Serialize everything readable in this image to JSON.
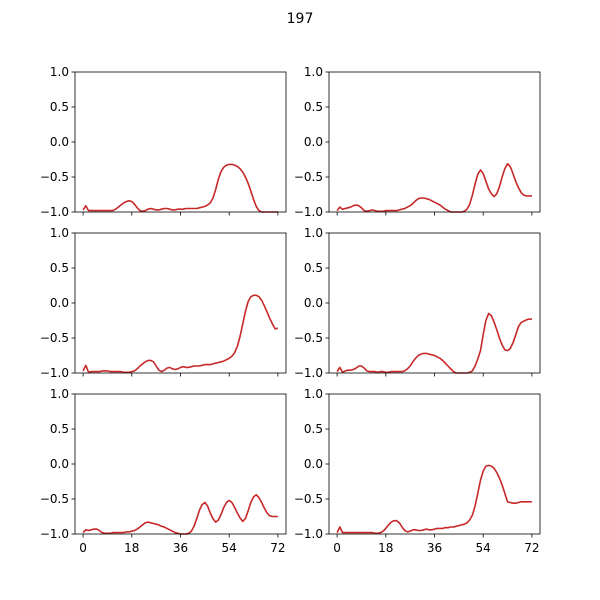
{
  "title": "197",
  "line_color": "#c62828",
  "chart_data": {
    "type": "line",
    "layout": "3x2 grid",
    "title": "197",
    "xlim": [
      -3,
      75
    ],
    "ylim": [
      -1.0,
      1.0
    ],
    "xticks": [
      0,
      18,
      36,
      54,
      72
    ],
    "xtick_labels": [
      "0",
      "18",
      "36",
      "54",
      "72"
    ],
    "yticks": [
      -1.0,
      -0.5,
      0.0,
      0.5,
      1.0
    ],
    "ytick_labels": [
      "−1.0",
      "−0.5",
      "0.0",
      "0.5",
      "1.0"
    ],
    "grid": false,
    "x": [
      0,
      1,
      2,
      3,
      4,
      5,
      6,
      7,
      8,
      9,
      10,
      11,
      12,
      13,
      14,
      15,
      16,
      17,
      18,
      19,
      20,
      21,
      22,
      23,
      24,
      25,
      26,
      27,
      28,
      29,
      30,
      31,
      32,
      33,
      34,
      35,
      36,
      37,
      38,
      39,
      40,
      41,
      42,
      43,
      44,
      45,
      46,
      47,
      48,
      49,
      50,
      51,
      52,
      53,
      54,
      55,
      56,
      57,
      58,
      59,
      60,
      61,
      62,
      63,
      64,
      65,
      66,
      67,
      68,
      69,
      70,
      71,
      72
    ],
    "panels": [
      {
        "position": "top-left",
        "values": [
          -0.97,
          -0.91,
          -0.98,
          -0.98,
          -0.98,
          -0.98,
          -0.98,
          -0.98,
          -0.98,
          -0.98,
          -0.98,
          -0.98,
          -0.96,
          -0.93,
          -0.9,
          -0.87,
          -0.85,
          -0.84,
          -0.85,
          -0.89,
          -0.94,
          -0.98,
          -0.99,
          -0.98,
          -0.96,
          -0.95,
          -0.96,
          -0.97,
          -0.97,
          -0.96,
          -0.95,
          -0.95,
          -0.96,
          -0.97,
          -0.97,
          -0.96,
          -0.96,
          -0.96,
          -0.95,
          -0.95,
          -0.95,
          -0.95,
          -0.95,
          -0.94,
          -0.93,
          -0.92,
          -0.9,
          -0.87,
          -0.8,
          -0.68,
          -0.53,
          -0.42,
          -0.36,
          -0.33,
          -0.32,
          -0.32,
          -0.33,
          -0.35,
          -0.38,
          -0.43,
          -0.5,
          -0.59,
          -0.7,
          -0.82,
          -0.92,
          -0.98,
          -1.0,
          -1.0,
          -1.0,
          -1.0,
          -1.0,
          -1.0,
          -1.0
        ]
      },
      {
        "position": "top-right",
        "values": [
          -0.98,
          -0.93,
          -0.96,
          -0.95,
          -0.94,
          -0.93,
          -0.91,
          -0.9,
          -0.91,
          -0.94,
          -0.98,
          -0.99,
          -0.98,
          -0.97,
          -0.98,
          -0.99,
          -0.99,
          -0.99,
          -0.98,
          -0.98,
          -0.98,
          -0.98,
          -0.98,
          -0.97,
          -0.96,
          -0.95,
          -0.93,
          -0.91,
          -0.88,
          -0.84,
          -0.81,
          -0.8,
          -0.8,
          -0.81,
          -0.82,
          -0.84,
          -0.86,
          -0.88,
          -0.9,
          -0.93,
          -0.96,
          -0.98,
          -1.0,
          -1.0,
          -1.0,
          -1.0,
          -1.0,
          -0.99,
          -0.96,
          -0.89,
          -0.76,
          -0.6,
          -0.46,
          -0.4,
          -0.45,
          -0.56,
          -0.67,
          -0.74,
          -0.78,
          -0.74,
          -0.64,
          -0.5,
          -0.38,
          -0.31,
          -0.35,
          -0.45,
          -0.56,
          -0.65,
          -0.72,
          -0.76,
          -0.77,
          -0.77,
          -0.77
        ]
      },
      {
        "position": "middle-left",
        "values": [
          -0.97,
          -0.89,
          -0.99,
          -0.98,
          -0.98,
          -0.98,
          -0.98,
          -0.97,
          -0.97,
          -0.97,
          -0.98,
          -0.98,
          -0.98,
          -0.98,
          -0.98,
          -0.99,
          -0.99,
          -0.99,
          -0.98,
          -0.97,
          -0.94,
          -0.9,
          -0.87,
          -0.84,
          -0.82,
          -0.82,
          -0.84,
          -0.9,
          -0.96,
          -0.98,
          -0.96,
          -0.93,
          -0.92,
          -0.94,
          -0.95,
          -0.94,
          -0.92,
          -0.91,
          -0.92,
          -0.92,
          -0.91,
          -0.9,
          -0.9,
          -0.9,
          -0.89,
          -0.88,
          -0.88,
          -0.88,
          -0.87,
          -0.86,
          -0.85,
          -0.84,
          -0.83,
          -0.81,
          -0.79,
          -0.76,
          -0.71,
          -0.62,
          -0.48,
          -0.3,
          -0.12,
          0.02,
          0.09,
          0.11,
          0.11,
          0.09,
          0.04,
          -0.04,
          -0.13,
          -0.22,
          -0.3,
          -0.37,
          -0.36
        ]
      },
      {
        "position": "middle-right",
        "values": [
          -0.98,
          -0.92,
          -0.99,
          -0.97,
          -0.96,
          -0.96,
          -0.95,
          -0.93,
          -0.9,
          -0.9,
          -0.93,
          -0.97,
          -0.98,
          -0.98,
          -0.98,
          -0.99,
          -0.98,
          -0.98,
          -0.99,
          -0.99,
          -0.98,
          -0.98,
          -0.98,
          -0.98,
          -0.98,
          -0.97,
          -0.94,
          -0.9,
          -0.84,
          -0.79,
          -0.75,
          -0.73,
          -0.72,
          -0.72,
          -0.73,
          -0.74,
          -0.75,
          -0.77,
          -0.79,
          -0.82,
          -0.86,
          -0.9,
          -0.94,
          -0.98,
          -1.0,
          -1.0,
          -1.0,
          -1.0,
          -1.0,
          -0.99,
          -0.97,
          -0.9,
          -0.8,
          -0.68,
          -0.45,
          -0.25,
          -0.15,
          -0.18,
          -0.27,
          -0.38,
          -0.5,
          -0.6,
          -0.67,
          -0.68,
          -0.65,
          -0.57,
          -0.46,
          -0.34,
          -0.28,
          -0.26,
          -0.24,
          -0.23,
          -0.23
        ]
      },
      {
        "position": "bottom-left",
        "values": [
          -0.98,
          -0.94,
          -0.95,
          -0.94,
          -0.93,
          -0.93,
          -0.95,
          -0.98,
          -0.99,
          -0.99,
          -0.99,
          -0.98,
          -0.98,
          -0.98,
          -0.98,
          -0.98,
          -0.97,
          -0.97,
          -0.96,
          -0.95,
          -0.93,
          -0.9,
          -0.87,
          -0.84,
          -0.83,
          -0.84,
          -0.85,
          -0.86,
          -0.87,
          -0.89,
          -0.9,
          -0.92,
          -0.94,
          -0.96,
          -0.98,
          -0.99,
          -1.0,
          -1.0,
          -1.0,
          -0.99,
          -0.96,
          -0.89,
          -0.78,
          -0.66,
          -0.58,
          -0.55,
          -0.6,
          -0.7,
          -0.78,
          -0.83,
          -0.8,
          -0.72,
          -0.62,
          -0.55,
          -0.52,
          -0.55,
          -0.62,
          -0.7,
          -0.77,
          -0.82,
          -0.78,
          -0.67,
          -0.55,
          -0.47,
          -0.44,
          -0.48,
          -0.55,
          -0.63,
          -0.7,
          -0.74,
          -0.75,
          -0.75,
          -0.75
        ]
      },
      {
        "position": "bottom-right",
        "values": [
          -0.98,
          -0.9,
          -0.98,
          -0.98,
          -0.98,
          -0.98,
          -0.98,
          -0.98,
          -0.98,
          -0.98,
          -0.98,
          -0.98,
          -0.98,
          -0.98,
          -0.99,
          -0.99,
          -0.98,
          -0.96,
          -0.92,
          -0.87,
          -0.83,
          -0.81,
          -0.81,
          -0.84,
          -0.9,
          -0.95,
          -0.97,
          -0.96,
          -0.94,
          -0.94,
          -0.95,
          -0.95,
          -0.94,
          -0.93,
          -0.94,
          -0.94,
          -0.93,
          -0.92,
          -0.92,
          -0.92,
          -0.91,
          -0.91,
          -0.9,
          -0.9,
          -0.89,
          -0.88,
          -0.87,
          -0.86,
          -0.84,
          -0.8,
          -0.73,
          -0.6,
          -0.42,
          -0.23,
          -0.1,
          -0.03,
          -0.02,
          -0.03,
          -0.06,
          -0.12,
          -0.2,
          -0.3,
          -0.42,
          -0.54,
          -0.55,
          -0.56,
          -0.56,
          -0.55,
          -0.54,
          -0.54,
          -0.54,
          -0.54,
          -0.54
        ]
      }
    ]
  }
}
